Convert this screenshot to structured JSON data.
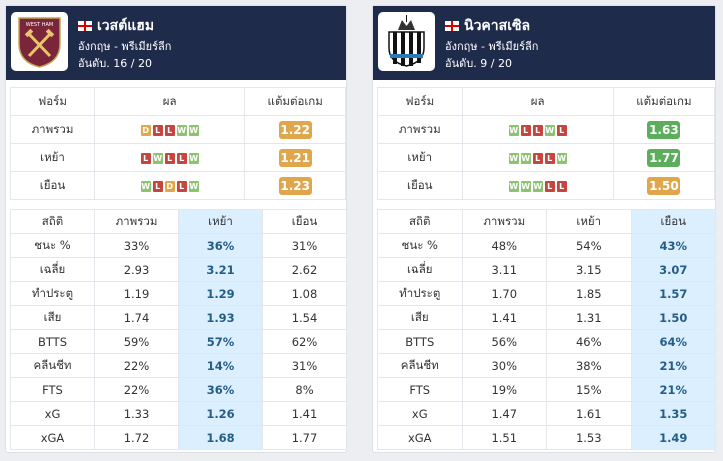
{
  "teams": [
    {
      "name": "เวสต์แฮม",
      "league": "อังกฤษ - พรีเมียร์ลีก",
      "rank": "อันดับ. 16 / 20",
      "form": {
        "headers": [
          "ฟอร์ม",
          "ผล",
          "แต้มต่อเกม"
        ],
        "rows": [
          {
            "label": "ภาพรวม",
            "results": [
              "D",
              "L",
              "L",
              "W",
              "W"
            ],
            "ppg": "1.22",
            "ppg_color": "#e0a64c"
          },
          {
            "label": "เหย้า",
            "results": [
              "L",
              "W",
              "L",
              "L",
              "W"
            ],
            "ppg": "1.21",
            "ppg_color": "#e0a64c"
          },
          {
            "label": "เยือน",
            "results": [
              "W",
              "L",
              "D",
              "L",
              "W"
            ],
            "ppg": "1.23",
            "ppg_color": "#e0a64c"
          }
        ]
      },
      "stats": {
        "headers": [
          "สถิติ",
          "ภาพรวม",
          "เหย้า",
          "เยือน"
        ],
        "highlight_column": 2,
        "rows": [
          [
            "ชนะ %",
            "33%",
            "36%",
            "31%"
          ],
          [
            "เฉลี่ย",
            "2.93",
            "3.21",
            "2.62"
          ],
          [
            "ทำประตู",
            "1.19",
            "1.29",
            "1.08"
          ],
          [
            "เสีย",
            "1.74",
            "1.93",
            "1.54"
          ],
          [
            "BTTS",
            "59%",
            "57%",
            "62%"
          ],
          [
            "คลีนชีท",
            "22%",
            "14%",
            "31%"
          ],
          [
            "FTS",
            "22%",
            "36%",
            "8%"
          ],
          [
            "xG",
            "1.33",
            "1.26",
            "1.41"
          ],
          [
            "xGA",
            "1.72",
            "1.68",
            "1.77"
          ]
        ]
      }
    },
    {
      "name": "นิวคาสเซิล",
      "league": "อังกฤษ - พรีเมียร์ลีก",
      "rank": "อันดับ. 9 / 20",
      "form": {
        "headers": [
          "ฟอร์ม",
          "ผล",
          "แต้มต่อเกม"
        ],
        "rows": [
          {
            "label": "ภาพรวม",
            "results": [
              "W",
              "L",
              "L",
              "W",
              "L"
            ],
            "ppg": "1.63",
            "ppg_color": "#5cae5c"
          },
          {
            "label": "เหย้า",
            "results": [
              "W",
              "W",
              "L",
              "L",
              "W"
            ],
            "ppg": "1.77",
            "ppg_color": "#5cae5c"
          },
          {
            "label": "เยือน",
            "results": [
              "W",
              "W",
              "W",
              "L",
              "L"
            ],
            "ppg": "1.50",
            "ppg_color": "#e0a64c"
          }
        ]
      },
      "stats": {
        "headers": [
          "สถิติ",
          "ภาพรวม",
          "เหย้า",
          "เยือน"
        ],
        "highlight_column": 3,
        "rows": [
          [
            "ชนะ %",
            "48%",
            "54%",
            "43%"
          ],
          [
            "เฉลี่ย",
            "3.11",
            "3.15",
            "3.07"
          ],
          [
            "ทำประตู",
            "1.70",
            "1.85",
            "1.57"
          ],
          [
            "เสีย",
            "1.41",
            "1.31",
            "1.50"
          ],
          [
            "BTTS",
            "56%",
            "46%",
            "64%"
          ],
          [
            "คลีนชีท",
            "30%",
            "38%",
            "21%"
          ],
          [
            "FTS",
            "19%",
            "15%",
            "21%"
          ],
          [
            "xG",
            "1.47",
            "1.61",
            "1.35"
          ],
          [
            "xGA",
            "1.51",
            "1.53",
            "1.49"
          ]
        ]
      }
    }
  ]
}
